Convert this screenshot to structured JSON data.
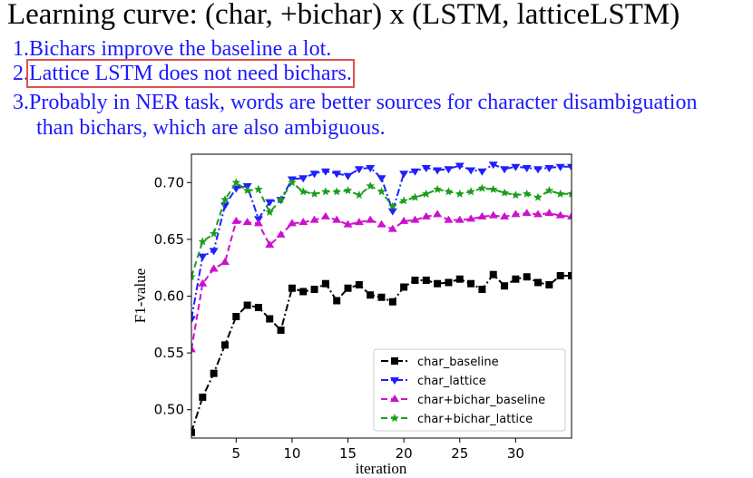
{
  "slide": {
    "title": "Learning curve: (char, +bichar) x (LSTM, latticeLSTM)",
    "points": [
      {
        "num": "1.",
        "text": "Bichars improve the baseline a lot."
      },
      {
        "num": "2.",
        "text": "Lattice LSTM does not need bichars."
      },
      {
        "num": "3.",
        "text": "Probably in NER task, words are better sources for character disambiguation"
      }
    ],
    "point3_cont": "than bichars, which are also ambiguous."
  },
  "colors": {
    "highlight": "#e05050",
    "text_blue": "#1a1aff"
  },
  "chart_data": {
    "type": "line",
    "xlabel": "iteration",
    "ylabel": "F1-value",
    "xlim": [
      1,
      35
    ],
    "ylim": [
      0.475,
      0.725
    ],
    "xticks": [
      5,
      10,
      15,
      20,
      25,
      30
    ],
    "yticks": [
      0.5,
      0.55,
      0.6,
      0.65,
      0.7
    ],
    "legend_position": "lower-right",
    "grid": false,
    "x": [
      1,
      2,
      3,
      4,
      5,
      6,
      7,
      8,
      9,
      10,
      11,
      12,
      13,
      14,
      15,
      16,
      17,
      18,
      19,
      20,
      21,
      22,
      23,
      24,
      25,
      26,
      27,
      28,
      29,
      30,
      31,
      32,
      33,
      34,
      35
    ],
    "series": [
      {
        "name": "char_baseline",
        "color": "#000000",
        "marker": "square",
        "dash": "8,3,2,3",
        "values": [
          0.48,
          0.511,
          0.532,
          0.557,
          0.582,
          0.592,
          0.59,
          0.58,
          0.57,
          0.607,
          0.604,
          0.606,
          0.611,
          0.596,
          0.607,
          0.61,
          0.601,
          0.599,
          0.595,
          0.608,
          0.614,
          0.614,
          0.611,
          0.612,
          0.615,
          0.611,
          0.606,
          0.619,
          0.609,
          0.615,
          0.617,
          0.612,
          0.61,
          0.618,
          0.618
        ]
      },
      {
        "name": "char_lattice",
        "color": "#1f1fff",
        "marker": "triangle-down",
        "dash": "8,3,2,3",
        "values": [
          0.58,
          0.635,
          0.64,
          0.68,
          0.695,
          0.697,
          0.668,
          0.683,
          0.685,
          0.703,
          0.704,
          0.708,
          0.71,
          0.708,
          0.706,
          0.712,
          0.713,
          0.704,
          0.675,
          0.708,
          0.71,
          0.713,
          0.711,
          0.712,
          0.715,
          0.711,
          0.71,
          0.716,
          0.712,
          0.714,
          0.713,
          0.712,
          0.713,
          0.714,
          0.714
        ]
      },
      {
        "name": "char+bichar_baseline",
        "color": "#cc11cc",
        "marker": "triangle-up",
        "dash": "7,4",
        "values": [
          0.553,
          0.611,
          0.624,
          0.63,
          0.666,
          0.665,
          0.664,
          0.645,
          0.654,
          0.664,
          0.665,
          0.667,
          0.67,
          0.667,
          0.663,
          0.665,
          0.667,
          0.663,
          0.659,
          0.666,
          0.667,
          0.67,
          0.672,
          0.667,
          0.667,
          0.668,
          0.67,
          0.671,
          0.67,
          0.672,
          0.673,
          0.672,
          0.673,
          0.671,
          0.67
        ]
      },
      {
        "name": "char+bichar_lattice",
        "color": "#1a9e1a",
        "marker": "star",
        "dash": "7,4",
        "values": [
          0.617,
          0.648,
          0.655,
          0.685,
          0.7,
          0.693,
          0.694,
          0.674,
          0.685,
          0.7,
          0.692,
          0.69,
          0.692,
          0.692,
          0.693,
          0.689,
          0.697,
          0.692,
          0.679,
          0.684,
          0.687,
          0.69,
          0.694,
          0.692,
          0.69,
          0.692,
          0.695,
          0.694,
          0.691,
          0.689,
          0.69,
          0.687,
          0.693,
          0.69,
          0.69
        ]
      }
    ]
  }
}
